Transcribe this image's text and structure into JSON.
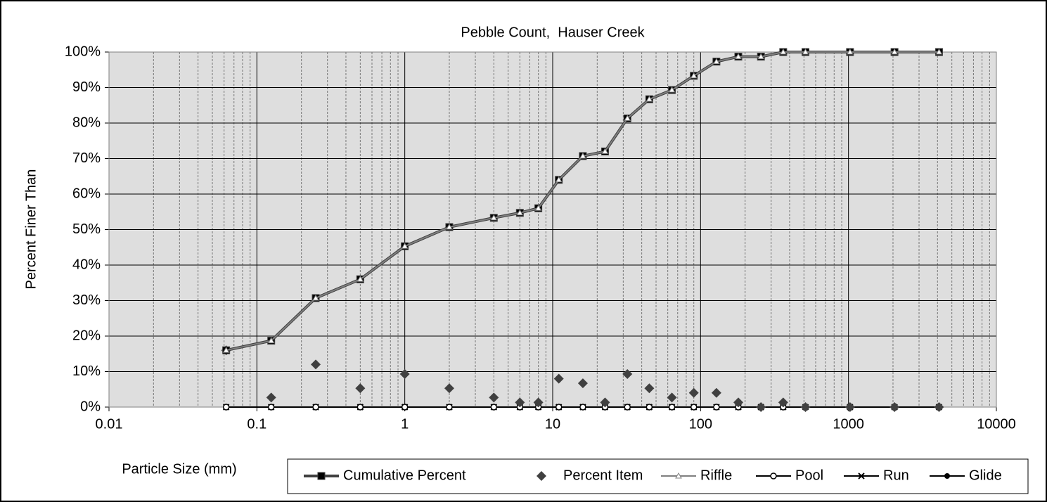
{
  "chart_data": {
    "type": "line",
    "title": "Pebble Count,  Hauser Creek",
    "x_label": "Particle Size (mm)",
    "y_label": "Percent Finer Than",
    "x": [
      0.062,
      0.125,
      0.25,
      0.5,
      1,
      2,
      4,
      6,
      8,
      11,
      16,
      22.6,
      32,
      45,
      64,
      90,
      128,
      180,
      256,
      362,
      512,
      1024,
      2048,
      4096
    ],
    "xscale": "log",
    "xlim": [
      0.01,
      10000
    ],
    "xticks": [
      0.01,
      0.1,
      1,
      10,
      100,
      1000,
      10000
    ],
    "ylim": [
      0,
      100
    ],
    "yticks": [
      {
        "value": 0,
        "label": "0%"
      },
      {
        "value": 10,
        "label": "10%"
      },
      {
        "value": 20,
        "label": "20%"
      },
      {
        "value": 30,
        "label": "30%"
      },
      {
        "value": 40,
        "label": "40%"
      },
      {
        "value": 50,
        "label": "50%"
      },
      {
        "value": 60,
        "label": "60%"
      },
      {
        "value": 70,
        "label": "70%"
      },
      {
        "value": 80,
        "label": "80%"
      },
      {
        "value": 90,
        "label": "90%"
      },
      {
        "value": 100,
        "label": "100%"
      }
    ],
    "grid": true,
    "legend": "bottom",
    "series": [
      {
        "name": "Cumulative Percent",
        "color": "#404040",
        "marker": "square",
        "line": true,
        "values": [
          16,
          18.7,
          30.7,
          36,
          45.3,
          50.7,
          53.3,
          54.7,
          56,
          64,
          70.7,
          72,
          81.3,
          86.7,
          89.3,
          93.3,
          97.3,
          98.7,
          98.7,
          100,
          100,
          100,
          100,
          100
        ]
      },
      {
        "name": "Percent Item",
        "color": "#404040",
        "marker": "diamond",
        "line": false,
        "values": [
          16,
          2.7,
          12,
          5.3,
          9.3,
          5.3,
          2.7,
          1.3,
          1.3,
          8,
          6.7,
          1.3,
          9.3,
          5.3,
          2.7,
          4,
          4,
          1.3,
          0,
          1.3,
          0,
          0,
          0,
          0
        ]
      },
      {
        "name": "Riffle",
        "color": "#808080",
        "marker": "triangle",
        "line": true,
        "values": [
          16,
          18.7,
          30.7,
          36,
          45.3,
          50.7,
          53.3,
          54.7,
          56,
          64,
          70.7,
          72,
          81.3,
          86.7,
          89.3,
          93.3,
          97.3,
          98.7,
          98.7,
          100,
          100,
          100,
          100,
          100
        ]
      },
      {
        "name": "Pool",
        "color": "#000000",
        "marker": "circle-open",
        "line": true,
        "values": [
          0,
          0,
          0,
          0,
          0,
          0,
          0,
          0,
          0,
          0,
          0,
          0,
          0,
          0,
          0,
          0,
          0,
          0,
          0,
          0,
          0,
          0,
          0,
          0
        ]
      },
      {
        "name": "Run",
        "color": "#000000",
        "marker": "cross",
        "line": true,
        "values": [
          0,
          0,
          0,
          0,
          0,
          0,
          0,
          0,
          0,
          0,
          0,
          0,
          0,
          0,
          0,
          0,
          0,
          0,
          0,
          0,
          0,
          0,
          0,
          0
        ]
      },
      {
        "name": "Glide",
        "color": "#000000",
        "marker": "circle",
        "line": true,
        "values": [
          0,
          0,
          0,
          0,
          0,
          0,
          0,
          0,
          0,
          0,
          0,
          0,
          0,
          0,
          0,
          0,
          0,
          0,
          0,
          0,
          0,
          0,
          0,
          0
        ]
      }
    ]
  }
}
